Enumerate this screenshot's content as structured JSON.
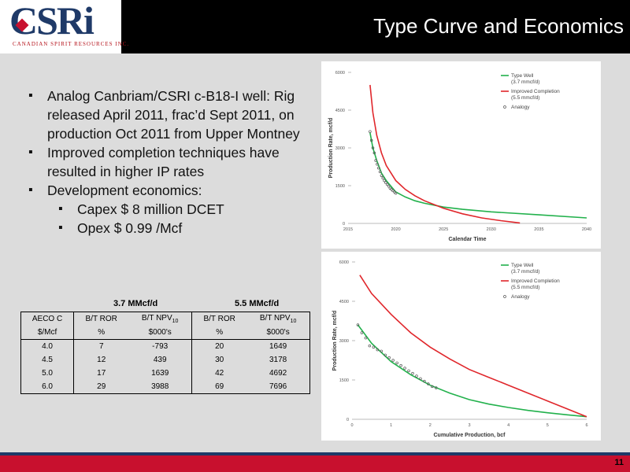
{
  "header": {
    "logo_text": "CSRi",
    "logo_sub": "CANADIAN SPIRIT RESOURCES INC.",
    "title": "Type Curve and Economics"
  },
  "bullets": [
    "Analog Canbriam/CSRI c-B18-I well: Rig released April 2011, frac’d Sept 2011, on production Oct 2011 from Upper Montney",
    "Improved completion techniques have resulted in higher IP rates",
    "Development economics:"
  ],
  "sub_bullets": [
    "Capex $ 8 million DCET",
    "Opex $ 0.99 /Mcf"
  ],
  "econ": {
    "group1": "3.7 MMcf/d",
    "group2": "5.5 MMcf/d",
    "head1": [
      "AECO C",
      "B/T ROR",
      "B/T NPV",
      "B/T ROR",
      "B/T NPV"
    ],
    "npv_sub": "10",
    "head2": [
      "$/Mcf",
      "%",
      "$000's",
      "%",
      "$000's"
    ],
    "rows": [
      [
        "4.0",
        "7",
        "-793",
        "20",
        "1649"
      ],
      [
        "4.5",
        "12",
        "439",
        "30",
        "3178"
      ],
      [
        "5.0",
        "17",
        "1639",
        "42",
        "4692"
      ],
      [
        "6.0",
        "29",
        "3988",
        "69",
        "7696"
      ]
    ]
  },
  "chart_data": [
    {
      "type": "line",
      "xlabel": "Calendar Time",
      "ylabel": "Production Rate, mcf/d",
      "xlim": [
        2015,
        2040
      ],
      "ylim": [
        0,
        6000
      ],
      "xticks": [
        2015,
        2020,
        2025,
        2030,
        2035,
        2040
      ],
      "yticks": [
        0,
        1500,
        3000,
        4500,
        6000
      ],
      "legend": "top-right",
      "series": [
        {
          "name": "Type Well",
          "name2": "(3.7 mmcf/d)",
          "color": "#22b14c",
          "x": [
            2017.3,
            2017.6,
            2018,
            2018.5,
            2019,
            2020,
            2021,
            2022,
            2023,
            2025,
            2027,
            2030,
            2035,
            2040
          ],
          "y": [
            3600,
            3000,
            2500,
            2000,
            1700,
            1250,
            1050,
            900,
            800,
            650,
            560,
            460,
            340,
            220
          ]
        },
        {
          "name": "Improved Completion",
          "name2": "(5.5 mmcf/d)",
          "color": "#e0262b",
          "x": [
            2017.3,
            2017.6,
            2018,
            2018.5,
            2019,
            2020,
            2021,
            2022,
            2023,
            2025,
            2027,
            2029,
            2031,
            2033
          ],
          "y": [
            5500,
            4400,
            3500,
            2800,
            2300,
            1700,
            1350,
            1100,
            900,
            600,
            380,
            220,
            110,
            20
          ]
        },
        {
          "name": "Analogy",
          "color": "#555555",
          "kind": "scatter",
          "x": [
            2017.3,
            2017.45,
            2017.6,
            2017.75,
            2017.9,
            2018.05,
            2018.2,
            2018.35,
            2018.5,
            2018.65,
            2018.8,
            2018.95,
            2019.1,
            2019.25,
            2019.4,
            2019.55,
            2019.7,
            2019.85,
            2020.0
          ],
          "y": [
            3650,
            3300,
            3000,
            2800,
            2500,
            2350,
            2200,
            2050,
            1900,
            1800,
            1700,
            1620,
            1550,
            1480,
            1400,
            1350,
            1300,
            1250,
            1200
          ]
        }
      ]
    },
    {
      "type": "line",
      "xlabel": "Cumulative Production, bcf",
      "ylabel": "Production Rate, mcf/d",
      "xlim": [
        0,
        6
      ],
      "ylim": [
        0,
        6000
      ],
      "xticks": [
        0,
        1,
        2,
        3,
        4,
        5,
        6
      ],
      "yticks": [
        0,
        1500,
        3000,
        4500,
        6000
      ],
      "legend": "top-right",
      "series": [
        {
          "name": "Type Well",
          "name2": "(3.7 mmcf/d)",
          "color": "#22b14c",
          "x": [
            0.15,
            0.5,
            1,
            1.5,
            2,
            2.5,
            3,
            3.5,
            4,
            4.5,
            5,
            5.5,
            6
          ],
          "y": [
            3600,
            2900,
            2200,
            1700,
            1300,
            1000,
            750,
            580,
            450,
            340,
            250,
            170,
            100
          ]
        },
        {
          "name": "Improved Completion",
          "name2": "(5.5 mmcf/d)",
          "color": "#e0262b",
          "x": [
            0.2,
            0.5,
            1,
            1.5,
            2,
            2.5,
            3,
            3.5,
            4,
            4.5,
            5,
            5.5,
            6
          ],
          "y": [
            5500,
            4800,
            4000,
            3300,
            2750,
            2300,
            1900,
            1600,
            1300,
            1000,
            700,
            400,
            100
          ]
        },
        {
          "name": "Analogy",
          "color": "#555555",
          "kind": "scatter",
          "x": [
            0.15,
            0.25,
            0.35,
            0.45,
            0.55,
            0.65,
            0.75,
            0.85,
            0.95,
            1.05,
            1.15,
            1.25,
            1.35,
            1.45,
            1.55,
            1.65,
            1.75,
            1.85,
            1.95,
            2.05,
            2.15
          ],
          "y": [
            3600,
            3300,
            3100,
            2800,
            2750,
            2650,
            2600,
            2450,
            2350,
            2250,
            2150,
            2050,
            1950,
            1850,
            1750,
            1650,
            1550,
            1450,
            1350,
            1250,
            1200
          ]
        }
      ]
    }
  ],
  "page_number": "11"
}
